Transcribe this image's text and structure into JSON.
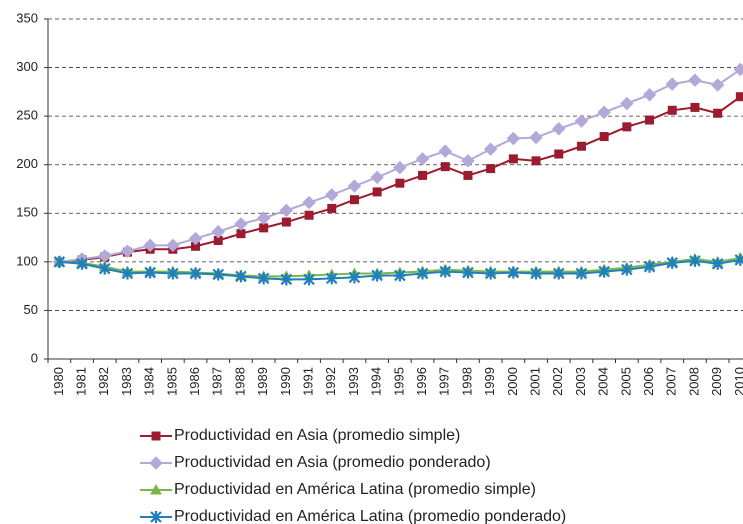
{
  "chart_data": {
    "type": "line",
    "categories": [
      "1980",
      "1981",
      "1982",
      "1983",
      "1984",
      "1985",
      "1986",
      "1987",
      "1988",
      "1989",
      "1990",
      "1991",
      "1992",
      "1993",
      "1994",
      "1995",
      "1996",
      "1997",
      "1998",
      "1999",
      "2000",
      "2001",
      "2002",
      "2003",
      "2004",
      "2005",
      "2006",
      "2007",
      "2008",
      "2009",
      "2010"
    ],
    "series": [
      {
        "name": "Productividad en Asia (promedio simple)",
        "color": "#9b1b30",
        "marker": "square",
        "values": [
          100,
          102,
          105,
          110,
          113,
          113,
          116,
          122,
          129,
          135,
          141,
          148,
          155,
          164,
          172,
          181,
          189,
          198,
          189,
          196,
          206,
          204,
          211,
          219,
          229,
          239,
          246,
          256,
          259,
          253,
          270
        ]
      },
      {
        "name": "Productividad en Asia (promedio ponderado)",
        "color": "#b3a8d8",
        "marker": "diamond",
        "values": [
          100,
          103,
          106,
          111,
          117,
          117,
          124,
          131,
          139,
          145,
          153,
          161,
          169,
          178,
          187,
          197,
          206,
          214,
          204,
          216,
          227,
          228,
          237,
          245,
          254,
          263,
          272,
          283,
          287,
          282,
          298
        ]
      },
      {
        "name": "Productividad en América Latina (promedio simple)",
        "color": "#7ab648",
        "marker": "triangle",
        "values": [
          100,
          99,
          95,
          90,
          90,
          90,
          89,
          88,
          86,
          85,
          85,
          86,
          87,
          88,
          88,
          89,
          90,
          92,
          91,
          90,
          90,
          90,
          90,
          90,
          92,
          94,
          97,
          100,
          103,
          100,
          104
        ]
      },
      {
        "name": "Productividad en América Latina (promedio ponderado)",
        "color": "#1f7fc0",
        "marker": "cross",
        "values": [
          100,
          98,
          93,
          88,
          89,
          88,
          88,
          87,
          85,
          83,
          82,
          82,
          83,
          84,
          86,
          86,
          88,
          90,
          89,
          88,
          89,
          88,
          88,
          88,
          90,
          92,
          95,
          99,
          101,
          98,
          102
        ]
      }
    ],
    "ylim": [
      0,
      350
    ],
    "yticks": [
      0,
      50,
      100,
      150,
      200,
      250,
      300,
      350
    ],
    "grid": true
  }
}
